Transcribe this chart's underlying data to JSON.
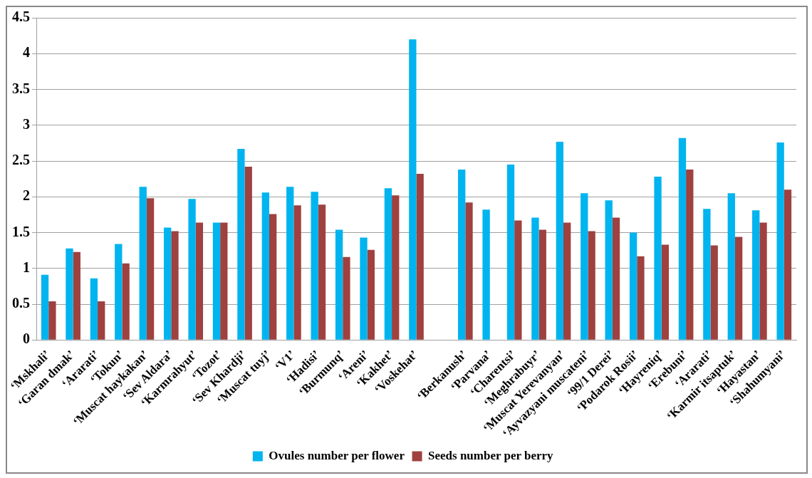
{
  "chart_data": {
    "type": "bar",
    "categories": [
      "‘Mskhali’",
      "‘Garan dmak’",
      "‘Ararati’",
      "‘Tokun’",
      "‘Muscat haykakan’",
      "‘Sev Aldara’",
      "‘Karmrahyut’",
      "‘Tozot’",
      "‘Sev Khardji’",
      "‘Muscat tuyj’",
      "‘V1’",
      "‘Hadisi’",
      "‘Burmunq’",
      "‘Areni’",
      "‘Kakhet’",
      "‘Voskehat’",
      null,
      "‘Berkanush’",
      "‘Parvana’",
      "‘Charentsi’",
      "‘Meghrabuyr’",
      "‘Muscat Yerevanyan’",
      "‘Ayvazyani muscateni’",
      "‘99/1 Derei’",
      "‘Podarok Rosii’",
      "‘Hayreniq’",
      "‘Erebuni’",
      "‘Ararati’",
      "‘Karmir itsaptuk’",
      "‘Hayastan’",
      "‘Shahumyani’"
    ],
    "series": [
      {
        "name": "Ovules number per flower",
        "color": "#00b4ef",
        "values": [
          0.91,
          1.28,
          0.86,
          1.34,
          2.14,
          1.57,
          1.97,
          1.64,
          2.67,
          2.06,
          2.14,
          2.07,
          1.54,
          1.43,
          2.12,
          4.2,
          null,
          2.38,
          1.82,
          2.45,
          1.71,
          2.77,
          2.05,
          1.95,
          1.5,
          2.28,
          2.82,
          1.83,
          2.05,
          1.81,
          2.76
        ]
      },
      {
        "name": "Seeds number per berry",
        "color": "#9e413f",
        "values": [
          0.54,
          1.23,
          0.54,
          1.07,
          1.98,
          1.52,
          1.64,
          1.64,
          2.42,
          1.76,
          1.88,
          1.89,
          1.16,
          1.26,
          2.02,
          2.32,
          null,
          1.92,
          null,
          1.67,
          1.54,
          1.64,
          1.52,
          1.71,
          1.17,
          1.33,
          2.38,
          1.32,
          1.44,
          1.64,
          2.1
        ]
      }
    ],
    "ylim": [
      0,
      4.5
    ],
    "yticks": [
      0,
      0.5,
      1,
      1.5,
      2,
      2.5,
      3,
      3.5,
      4,
      4.5
    ],
    "grid": "y",
    "legend": "bottom"
  }
}
